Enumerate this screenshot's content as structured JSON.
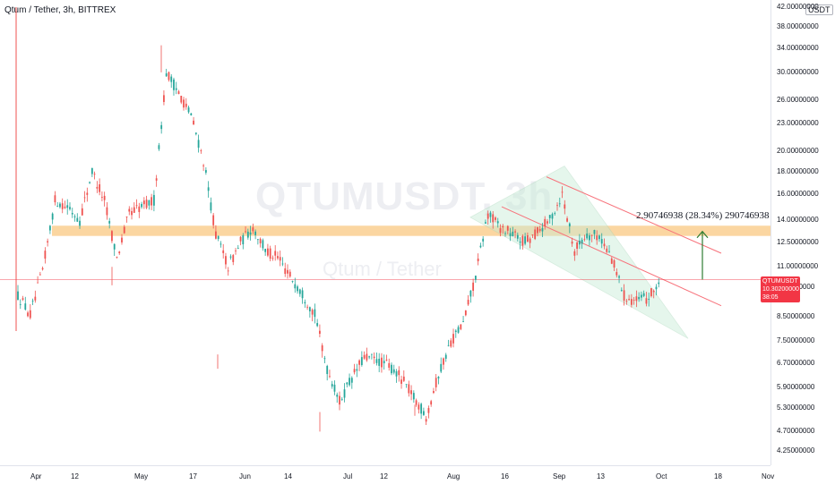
{
  "header": {
    "title": "Qtum / Tether, 3h, BITTREX"
  },
  "watermark": {
    "symbol": "QTUMUSDT, 3h",
    "name": "Qtum / Tether"
  },
  "badge": "USDT",
  "last_price": {
    "symbol": "QTUMUSDT",
    "price": "10.30200000",
    "countdown": "38:05",
    "color": "#f23645"
  },
  "measure_label": "2.90746938 (28.34%) 290746938",
  "colors": {
    "up": "#26a69a",
    "down": "#ef5350",
    "zone": "#f7b453",
    "channel": "#f7727b",
    "triangle": "#c7ecd6",
    "arrow": "#2e7d32"
  },
  "chart_data": {
    "type": "candlestick",
    "y_scale": "log",
    "ylim": [
      4.1,
      42.0
    ],
    "price_ticks": [
      "42.00000000",
      "38.00000000",
      "34.00000000",
      "30.00000000",
      "26.00000000",
      "23.00000000",
      "20.00000000",
      "18.00000000",
      "16.00000000",
      "14.00000000",
      "12.50000000",
      "11.00000000",
      "9.90000000",
      "8.50000000",
      "7.50000000",
      "6.70000000",
      "5.90000000",
      "5.30000000",
      "4.70000000",
      "4.25000000"
    ],
    "time_ticks": [
      "Apr",
      "12",
      "May",
      "17",
      "Jun",
      "14",
      "Jul",
      "12",
      "Aug",
      "16",
      "Sep",
      "13",
      "Oct",
      "18",
      "Nov"
    ],
    "series": [
      {
        "t": "Mar 28",
        "v": 9.5
      },
      {
        "t": "Apr 1",
        "v": 8.6
      },
      {
        "t": "Apr 5",
        "v": 10.8
      },
      {
        "t": "Apr 8",
        "v": 15.5
      },
      {
        "t": "Apr 12",
        "v": 15.0
      },
      {
        "t": "Apr 16",
        "v": 14.0
      },
      {
        "t": "Apr 20",
        "v": 18.0
      },
      {
        "t": "Apr 23",
        "v": 15.5
      },
      {
        "t": "Apr 26",
        "v": 11.5
      },
      {
        "t": "Apr 30",
        "v": 14.5
      },
      {
        "t": "May 3",
        "v": 15.0
      },
      {
        "t": "May 6",
        "v": 15.5
      },
      {
        "t": "May 8",
        "v": 30.0
      },
      {
        "t": "May 10",
        "v": 27.0
      },
      {
        "t": "May 13",
        "v": 24.0
      },
      {
        "t": "May 16",
        "v": 19.0
      },
      {
        "t": "May 19",
        "v": 13.0
      },
      {
        "t": "May 21",
        "v": 11.0
      },
      {
        "t": "May 24",
        "v": 12.5
      },
      {
        "t": "May 27",
        "v": 13.5
      },
      {
        "t": "Jun 1",
        "v": 12.0
      },
      {
        "t": "Jun 5",
        "v": 11.5
      },
      {
        "t": "Jun 9",
        "v": 10.5
      },
      {
        "t": "Jun 14",
        "v": 9.6
      },
      {
        "t": "Jun 18",
        "v": 8.6
      },
      {
        "t": "Jun 21",
        "v": 6.5
      },
      {
        "t": "Jun 23",
        "v": 5.5
      },
      {
        "t": "Jun 27",
        "v": 6.2
      },
      {
        "t": "Jul 1",
        "v": 6.9
      },
      {
        "t": "Jul 5",
        "v": 6.8
      },
      {
        "t": "Jul 9",
        "v": 6.6
      },
      {
        "t": "Jul 13",
        "v": 6.2
      },
      {
        "t": "Jul 17",
        "v": 5.6
      },
      {
        "t": "Jul 21",
        "v": 5.1
      },
      {
        "t": "Jul 25",
        "v": 6.3
      },
      {
        "t": "Aug 1",
        "v": 7.5
      },
      {
        "t": "Aug 7",
        "v": 8.2
      },
      {
        "t": "Aug 11",
        "v": 10.5
      },
      {
        "t": "Aug 14",
        "v": 14.5
      },
      {
        "t": "Aug 18",
        "v": 13.5
      },
      {
        "t": "Aug 22",
        "v": 13.0
      },
      {
        "t": "Aug 26",
        "v": 12.5
      },
      {
        "t": "Aug 30",
        "v": 13.2
      },
      {
        "t": "Sep 3",
        "v": 14.0
      },
      {
        "t": "Sep 6",
        "v": 16.0
      },
      {
        "t": "Sep 8",
        "v": 12.0
      },
      {
        "t": "Sep 11",
        "v": 13.0
      },
      {
        "t": "Sep 15",
        "v": 12.9
      },
      {
        "t": "Sep 19",
        "v": 11.5
      },
      {
        "t": "Sep 22",
        "v": 9.5
      },
      {
        "t": "Sep 25",
        "v": 9.2
      },
      {
        "t": "Sep 28",
        "v": 9.4
      },
      {
        "t": "Sep 30",
        "v": 10.3
      }
    ],
    "horizontal_zone": [
      12.9,
      13.6
    ],
    "measure": {
      "from": 10.3,
      "to": 13.2
    }
  }
}
